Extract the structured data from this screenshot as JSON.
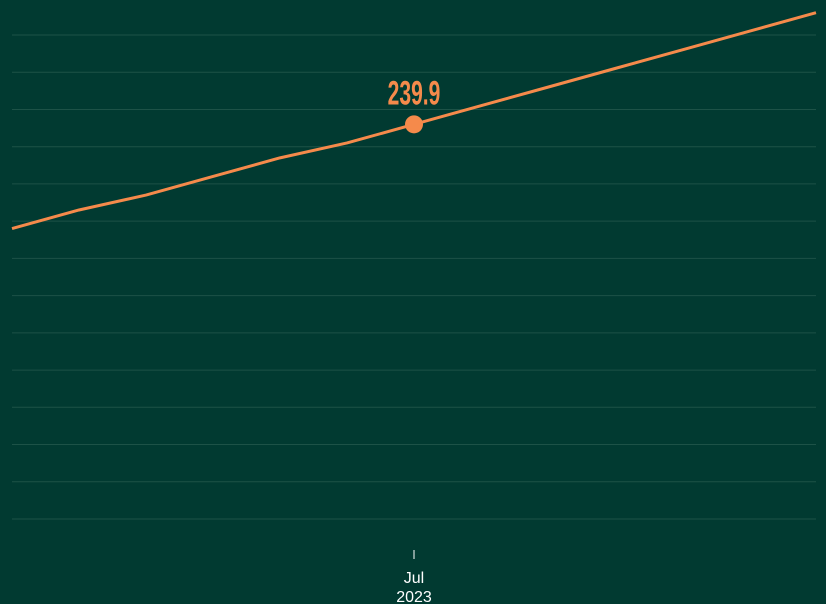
{
  "chart_data": {
    "type": "line",
    "categories": [
      null,
      null,
      null,
      null,
      null,
      null,
      "Jul",
      null,
      null,
      null,
      null,
      null,
      null
    ],
    "category_years": [
      null,
      null,
      null,
      null,
      null,
      null,
      "2023",
      null,
      null,
      null,
      null,
      null,
      null
    ],
    "series": [
      {
        "color": "#f58a4b",
        "values": [
          237.1,
          237.6,
          238.0,
          238.5,
          239.0,
          239.4,
          239.9,
          240.4,
          240.9,
          241.4,
          241.9,
          242.4,
          242.9
        ],
        "value_labels": [
          null,
          null,
          null,
          null,
          null,
          null,
          "239.9",
          null,
          null,
          null,
          null,
          null,
          null
        ]
      }
    ],
    "ylim": [
      229.3,
      242.3
    ],
    "yticks": [
      229.3,
      230.3,
      231.3,
      232.3,
      233.3,
      234.3,
      235.3,
      236.3,
      237.3,
      238.3,
      239.3,
      240.3,
      241.3,
      242.3
    ],
    "grid": true
  }
}
